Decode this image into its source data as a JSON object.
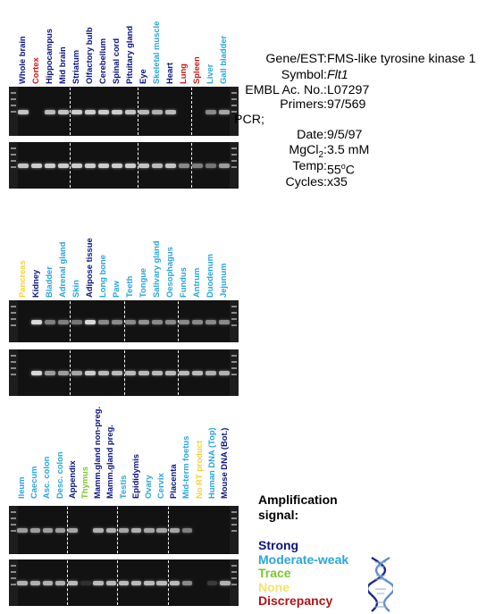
{
  "panels": [
    {
      "labels": [
        {
          "text": "Whole brain",
          "color": "#0b1580"
        },
        {
          "text": "Cortex",
          "color": "#cc1a1a"
        },
        {
          "text": "Hippocampus",
          "color": "#0b1580"
        },
        {
          "text": "Mid brain",
          "color": "#0b1580"
        },
        {
          "text": "Striatum",
          "color": "#0b1580"
        },
        {
          "text": "Olfactory bulb",
          "color": "#0b1580"
        },
        {
          "text": "Cerebellum",
          "color": "#0b1580"
        },
        {
          "text": "Spinal cord",
          "color": "#0b1580"
        },
        {
          "text": "Pituitary gland",
          "color": "#0b1580"
        },
        {
          "text": "Eye",
          "color": "#0b1580"
        },
        {
          "text": "Skeletal muscle",
          "color": "#2aa6dc"
        },
        {
          "text": "Heart",
          "color": "#0b1580"
        },
        {
          "text": "Lung",
          "color": "#cc1a1a"
        },
        {
          "text": "Spleen",
          "color": "#cc1a1a"
        },
        {
          "text": "Liver",
          "color": "#2aa6dc"
        },
        {
          "text": "Gall bladder",
          "color": "#2aa6dc"
        }
      ],
      "separators_after": [
        3,
        8,
        12
      ],
      "gels": [
        {
          "intensities": [
            0.9,
            0,
            0.85,
            0.9,
            0.95,
            0.95,
            0.95,
            0.95,
            0.9,
            0.85,
            0.8,
            0.85,
            0,
            0,
            0.6,
            0.75
          ]
        },
        {
          "intensities": [
            0.9,
            0.95,
            0.95,
            0.95,
            0.95,
            0.95,
            0.95,
            0.95,
            0.95,
            0.9,
            0.85,
            0.9,
            0.6,
            0.55,
            0.5,
            0.7
          ]
        }
      ]
    },
    {
      "labels": [
        {
          "text": "Pancreas",
          "color": "#f5d23a"
        },
        {
          "text": "Kidney",
          "color": "#0b1580"
        },
        {
          "text": "Bladder",
          "color": "#2aa6dc"
        },
        {
          "text": "Adrenal gland",
          "color": "#2aa6dc"
        },
        {
          "text": "Skin",
          "color": "#2aa6dc"
        },
        {
          "text": "Adipose tissue",
          "color": "#0b1580"
        },
        {
          "text": "Long bone",
          "color": "#2aa6dc"
        },
        {
          "text": "Paw",
          "color": "#2aa6dc"
        },
        {
          "text": "Teeth",
          "color": "#2aa6dc"
        },
        {
          "text": "Tongue",
          "color": "#2aa6dc"
        },
        {
          "text": "Salivary gland",
          "color": "#2aa6dc"
        },
        {
          "text": "Oesophagus",
          "color": "#2aa6dc"
        },
        {
          "text": "Fundus",
          "color": "#2aa6dc"
        },
        {
          "text": "Antrum",
          "color": "#2aa6dc"
        },
        {
          "text": "Duodenum",
          "color": "#2aa6dc"
        },
        {
          "text": "Jejunum",
          "color": "#2aa6dc"
        }
      ],
      "separators_after": [
        3,
        7,
        11
      ],
      "gels": [
        {
          "intensities": [
            0,
            1,
            0.55,
            0.55,
            0.5,
            1,
            0.6,
            0.6,
            0.6,
            0.65,
            0.6,
            0.6,
            0.6,
            0.6,
            0.6,
            0.6
          ]
        },
        {
          "intensities": [
            0,
            1,
            0.7,
            0.7,
            0.75,
            0.95,
            0.85,
            0.85,
            0.85,
            0.85,
            0.85,
            0.85,
            0.85,
            0.85,
            0.8,
            0.8
          ]
        }
      ]
    },
    {
      "labels": [
        {
          "text": "Ileum",
          "color": "#2aa6dc"
        },
        {
          "text": "Caecum",
          "color": "#2aa6dc"
        },
        {
          "text": "Asc. colon",
          "color": "#2aa6dc"
        },
        {
          "text": "Desc. colon",
          "color": "#2aa6dc"
        },
        {
          "text": "Appendix",
          "color": "#0b1580"
        },
        {
          "text": "Thymus",
          "color": "#7cc62a"
        },
        {
          "text": "Mamm.gland non-preg.",
          "color": "#0b1580"
        },
        {
          "text": "Mamm.gland preg.",
          "color": "#0b1580"
        },
        {
          "text": "Testis",
          "color": "#2aa6dc"
        },
        {
          "text": "Epididymis",
          "color": "#0b1580"
        },
        {
          "text": "Ovary",
          "color": "#2aa6dc"
        },
        {
          "text": "Cervix",
          "color": "#2aa6dc"
        },
        {
          "text": "Placenta",
          "color": "#0b1580"
        },
        {
          "text": "Mid-term foetus",
          "color": "#2aa6dc"
        },
        {
          "text": "No RT product",
          "color": "#f5d23a"
        },
        {
          "text": "Human DNA (Top)",
          "color": "#2aa6dc"
        },
        {
          "text": "Mouse DNA (Bot.)",
          "color": "#0b1580"
        }
      ],
      "separators_after": [
        3,
        7,
        11
      ],
      "gels": [
        {
          "intensities": [
            0.7,
            0.7,
            0.7,
            0.7,
            0.75,
            0,
            0.8,
            0.8,
            0.75,
            0.8,
            0.75,
            0.75,
            0.75,
            0.55,
            0,
            0,
            0
          ]
        },
        {
          "intensities": [
            0.8,
            0.8,
            0.8,
            0.8,
            0.85,
            0.15,
            0.85,
            0.85,
            0.85,
            0.85,
            0.85,
            0.85,
            0.85,
            0.6,
            0,
            0.2,
            0.8
          ]
        }
      ]
    }
  ],
  "info": {
    "gene_label": "Gene/EST:",
    "gene_value": "FMS-like tyrosine kinase 1",
    "symbol_label": "Symbol:",
    "symbol_value": "Flt1",
    "embl_label": "EMBL Ac. No.:",
    "embl_value": "L07297",
    "primers_label": "Primers:",
    "primers_value": "97/569",
    "pcr_label": "PCR;",
    "date_label": "Date:",
    "date_value": "9/5/97",
    "mgcl_label_main": "MgCl",
    "mgcl_label_sub": "2",
    "mgcl_label_colon": ":",
    "mgcl_value": "3.5 mM",
    "temp_label": "Temp:",
    "temp_value_num": "55",
    "temp_value_sup": "o",
    "temp_value_unit": "C",
    "cycles_label": "Cycles:",
    "cycles_value": "x35"
  },
  "legend": {
    "title_line1": "Amplification",
    "title_line2": "signal:",
    "items": [
      {
        "text": "Strong",
        "color": "#0b1580"
      },
      {
        "text": "Moderate-weak",
        "color": "#2aa6dc"
      },
      {
        "text": "Trace",
        "color": "#7cc62a"
      },
      {
        "text": "None",
        "color": "#f5e36a"
      },
      {
        "text": "Discrepancy",
        "color": "#b01515"
      }
    ]
  }
}
